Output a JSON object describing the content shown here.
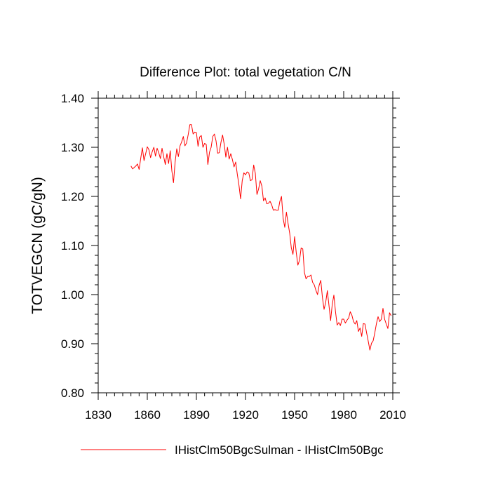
{
  "chart_data": {
    "type": "line",
    "title": "Difference Plot: total vegetation C/N",
    "xlabel": "",
    "ylabel": "TOTVEGCN  (gC/gN)",
    "xlim": [
      1830,
      2010
    ],
    "ylim": [
      0.8,
      1.4
    ],
    "x_ticks": [
      1830,
      1860,
      1890,
      1920,
      1950,
      1980,
      2010
    ],
    "y_ticks": [
      "0.80",
      "0.90",
      "1.00",
      "1.10",
      "1.20",
      "1.30",
      "1.40"
    ],
    "grid": false,
    "legend_position": "bottom",
    "series": [
      {
        "name": "IHistClm50BgcSulman - IHistClm50Bgc",
        "color": "#ff0000",
        "x": [
          1850,
          1851,
          1852,
          1853,
          1854,
          1855,
          1856,
          1857,
          1858,
          1859,
          1860,
          1861,
          1862,
          1863,
          1864,
          1865,
          1866,
          1867,
          1868,
          1869,
          1870,
          1871,
          1872,
          1873,
          1874,
          1875,
          1876,
          1877,
          1878,
          1879,
          1880,
          1881,
          1882,
          1883,
          1884,
          1885,
          1886,
          1887,
          1888,
          1889,
          1890,
          1891,
          1892,
          1893,
          1894,
          1895,
          1896,
          1897,
          1898,
          1899,
          1900,
          1901,
          1902,
          1903,
          1904,
          1905,
          1906,
          1907,
          1908,
          1909,
          1910,
          1911,
          1912,
          1913,
          1914,
          1915,
          1916,
          1917,
          1918,
          1919,
          1920,
          1921,
          1922,
          1923,
          1924,
          1925,
          1926,
          1927,
          1928,
          1929,
          1930,
          1931,
          1932,
          1933,
          1934,
          1935,
          1936,
          1937,
          1938,
          1939,
          1940,
          1941,
          1942,
          1943,
          1944,
          1945,
          1946,
          1947,
          1948,
          1949,
          1950,
          1951,
          1952,
          1953,
          1954,
          1955,
          1956,
          1957,
          1958,
          1959,
          1960,
          1961,
          1962,
          1963,
          1964,
          1965,
          1966,
          1967,
          1968,
          1969,
          1970,
          1971,
          1972,
          1973,
          1974,
          1975,
          1976,
          1977,
          1978,
          1979,
          1980,
          1981,
          1982,
          1983,
          1984,
          1985,
          1986,
          1987,
          1988,
          1989,
          1990,
          1991,
          1992,
          1993,
          1994,
          1995,
          1996,
          1997,
          1998,
          1999,
          2000,
          2001,
          2002,
          2003,
          2004,
          2005,
          2006,
          2007,
          2008,
          2009
        ],
        "values": [
          1.262,
          1.256,
          1.259,
          1.262,
          1.266,
          1.255,
          1.278,
          1.299,
          1.273,
          1.287,
          1.301,
          1.295,
          1.279,
          1.291,
          1.3,
          1.282,
          1.298,
          1.289,
          1.277,
          1.298,
          1.281,
          1.265,
          1.287,
          1.267,
          1.293,
          1.252,
          1.228,
          1.27,
          1.297,
          1.281,
          1.303,
          1.311,
          1.322,
          1.303,
          1.309,
          1.326,
          1.346,
          1.346,
          1.327,
          1.331,
          1.33,
          1.302,
          1.321,
          1.324,
          1.3,
          1.308,
          1.306,
          1.265,
          1.29,
          1.3,
          1.322,
          1.327,
          1.313,
          1.288,
          1.289,
          1.31,
          1.325,
          1.306,
          1.28,
          1.3,
          1.276,
          1.287,
          1.275,
          1.26,
          1.27,
          1.245,
          1.223,
          1.195,
          1.232,
          1.248,
          1.244,
          1.25,
          1.248,
          1.232,
          1.234,
          1.264,
          1.247,
          1.204,
          1.215,
          1.232,
          1.221,
          1.191,
          1.197,
          1.185,
          1.186,
          1.19,
          1.183,
          1.172,
          1.173,
          1.172,
          1.172,
          1.19,
          1.2,
          1.155,
          1.137,
          1.168,
          1.145,
          1.125,
          1.095,
          1.082,
          1.118,
          1.086,
          1.06,
          1.07,
          1.095,
          1.093,
          1.045,
          1.032,
          1.037,
          1.037,
          1.04,
          1.025,
          1.02,
          1.009,
          1.0,
          1.019,
          1.029,
          0.994,
          0.97,
          0.984,
          1.008,
          0.978,
          0.947,
          0.98,
          0.999,
          0.965,
          0.938,
          0.943,
          0.937,
          0.95,
          0.95,
          0.942,
          0.948,
          0.952,
          0.965,
          0.958,
          0.945,
          0.94,
          0.947,
          0.925,
          0.932,
          0.915,
          0.941,
          0.94,
          0.922,
          0.905,
          0.887,
          0.901,
          0.906,
          0.922,
          0.941,
          0.955,
          0.945,
          0.95,
          0.972,
          0.95,
          0.94,
          0.931,
          0.963,
          0.957
        ]
      }
    ]
  }
}
